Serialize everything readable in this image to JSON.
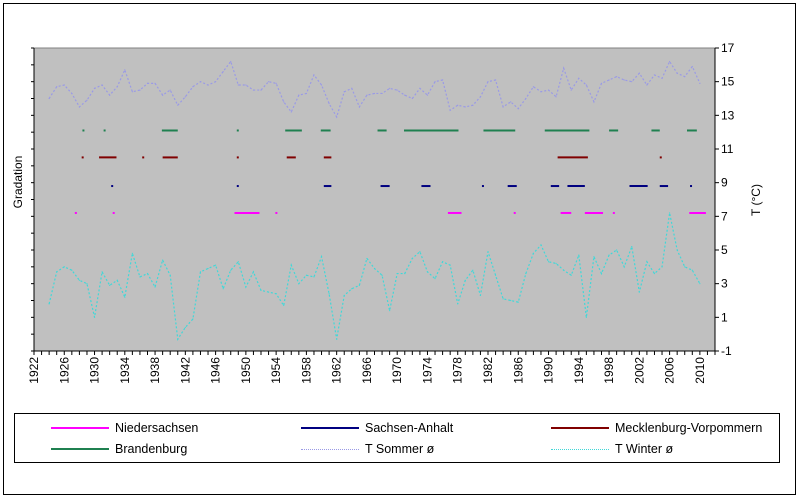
{
  "chart_data": {
    "type": "line",
    "xlabel": "",
    "ylabel_left": "Gradation",
    "ylabel_right": "T (°C)",
    "xlim": [
      1922,
      2012
    ],
    "ylim": [
      -1,
      17
    ],
    "x_ticks": [
      "1922",
      "1926",
      "1930",
      "1934",
      "1938",
      "1942",
      "1946",
      "1950",
      "1954",
      "1958",
      "1962",
      "1966",
      "1970",
      "1974",
      "1978",
      "1982",
      "1986",
      "1990",
      "1994",
      "1998",
      "2002",
      "2006",
      "2010"
    ],
    "y_ticks": [
      "17",
      "15",
      "13",
      "11",
      "9",
      "7",
      "5",
      "3",
      "1",
      "-1"
    ],
    "background": "#c0c0c0",
    "grid": false,
    "legend_position": "bottom",
    "series": [
      {
        "name": "Niedersachsen",
        "color": "#ff00ff",
        "style": "segments",
        "level": 7.2,
        "segments": [
          [
            1927.4,
            1927.6
          ],
          [
            1932.4,
            1932.6
          ],
          [
            1948.5,
            1951.8
          ],
          [
            1953.9,
            1954.1
          ],
          [
            1976.7,
            1978.5
          ],
          [
            1985.4,
            1985.6
          ],
          [
            1991.6,
            1993.0
          ],
          [
            1994.8,
            1997.2
          ],
          [
            1998.5,
            1998.7
          ],
          [
            2008.6,
            2010.8
          ]
        ]
      },
      {
        "name": "Sachsen-Anhalt",
        "color": "#000080",
        "style": "segments",
        "level": 8.8,
        "segments": [
          [
            1932.2,
            1932.4
          ],
          [
            1948.8,
            1949.0
          ],
          [
            1960.3,
            1961.3
          ],
          [
            1967.8,
            1969.0
          ],
          [
            1973.2,
            1974.4
          ],
          [
            1981.2,
            1981.4
          ],
          [
            1984.6,
            1985.8
          ],
          [
            1990.3,
            1991.4
          ],
          [
            1992.5,
            1994.8
          ],
          [
            2000.7,
            2003.1
          ],
          [
            2004.7,
            2005.8
          ],
          [
            2008.7,
            2008.9
          ]
        ]
      },
      {
        "name": "Mecklenburg-Vorpommern",
        "color": "#800000",
        "style": "segments",
        "level": 10.5,
        "segments": [
          [
            1928.3,
            1928.5
          ],
          [
            1930.6,
            1932.9
          ],
          [
            1936.3,
            1936.5
          ],
          [
            1939.0,
            1941.0
          ],
          [
            1948.8,
            1949.0
          ],
          [
            1955.4,
            1956.6
          ],
          [
            1960.3,
            1961.3
          ],
          [
            1991.2,
            1995.2
          ],
          [
            2004.7,
            2004.9
          ]
        ]
      },
      {
        "name": "Brandenburg",
        "color": "#1f8050",
        "style": "segments",
        "level": 12.1,
        "segments": [
          [
            1928.4,
            1928.6
          ],
          [
            1931.2,
            1931.4
          ],
          [
            1938.9,
            1941.0
          ],
          [
            1948.8,
            1949.0
          ],
          [
            1955.2,
            1957.4
          ],
          [
            1959.9,
            1961.2
          ],
          [
            1967.4,
            1968.6
          ],
          [
            1970.9,
            1978.1
          ],
          [
            1981.4,
            1985.6
          ],
          [
            1989.5,
            1995.4
          ],
          [
            1998.0,
            1999.2
          ],
          [
            2003.6,
            2004.7
          ],
          [
            2008.3,
            2009.6
          ]
        ]
      },
      {
        "name": "T Sommer ø",
        "color": "#9a9ae6",
        "style": "dotted",
        "x": [
          1924,
          1925,
          1926,
          1927,
          1928,
          1929,
          1930,
          1931,
          1932,
          1933,
          1934,
          1935,
          1936,
          1937,
          1938,
          1939,
          1940,
          1941,
          1942,
          1943,
          1944,
          1945,
          1946,
          1947,
          1948,
          1949,
          1950,
          1951,
          1952,
          1953,
          1954,
          1955,
          1956,
          1957,
          1958,
          1959,
          1960,
          1961,
          1962,
          1963,
          1964,
          1965,
          1966,
          1967,
          1968,
          1969,
          1970,
          1971,
          1972,
          1973,
          1974,
          1975,
          1976,
          1977,
          1978,
          1979,
          1980,
          1981,
          1982,
          1983,
          1984,
          1985,
          1986,
          1987,
          1988,
          1989,
          1990,
          1991,
          1992,
          1993,
          1994,
          1995,
          1996,
          1997,
          1998,
          1999,
          2000,
          2001,
          2002,
          2003,
          2004,
          2005,
          2006,
          2007,
          2008,
          2009,
          2010
        ],
        "y": [
          14.0,
          14.7,
          14.8,
          14.3,
          13.5,
          13.9,
          14.6,
          14.8,
          14.2,
          14.7,
          15.7,
          14.4,
          14.5,
          14.9,
          14.9,
          14.2,
          14.5,
          13.6,
          14.1,
          14.7,
          15.0,
          14.8,
          15.0,
          15.6,
          16.2,
          14.8,
          14.8,
          14.5,
          14.5,
          15.0,
          14.9,
          13.8,
          13.2,
          14.2,
          14.3,
          15.4,
          14.8,
          13.7,
          12.9,
          14.4,
          14.6,
          13.5,
          14.2,
          14.3,
          14.3,
          14.6,
          14.5,
          14.2,
          14.0,
          14.6,
          14.2,
          15.0,
          15.1,
          13.3,
          13.6,
          13.5,
          13.6,
          14.1,
          15.0,
          15.1,
          13.5,
          13.8,
          13.4,
          14.0,
          14.7,
          14.4,
          14.5,
          14.1,
          15.8,
          14.5,
          15.2,
          14.8,
          13.8,
          14.9,
          15.1,
          15.3,
          15.1,
          15.0,
          15.5,
          14.8,
          15.4,
          15.2,
          16.2,
          15.5,
          15.3,
          15.9,
          14.9
        ]
      },
      {
        "name": "T Winter ø",
        "color": "#40d8d8",
        "style": "dotted",
        "x": [
          1924,
          1925,
          1926,
          1927,
          1928,
          1929,
          1930,
          1931,
          1932,
          1933,
          1934,
          1935,
          1936,
          1937,
          1938,
          1939,
          1940,
          1941,
          1942,
          1943,
          1944,
          1945,
          1946,
          1947,
          1948,
          1949,
          1950,
          1951,
          1952,
          1953,
          1954,
          1955,
          1956,
          1957,
          1958,
          1959,
          1960,
          1961,
          1962,
          1963,
          1964,
          1965,
          1966,
          1967,
          1968,
          1969,
          1970,
          1971,
          1972,
          1973,
          1974,
          1975,
          1976,
          1977,
          1978,
          1979,
          1980,
          1981,
          1982,
          1983,
          1984,
          1985,
          1986,
          1987,
          1988,
          1989,
          1990,
          1991,
          1992,
          1993,
          1994,
          1995,
          1996,
          1997,
          1998,
          1999,
          2000,
          2001,
          2002,
          2003,
          2004,
          2005,
          2006,
          2007,
          2008,
          2009,
          2010
        ],
        "y": [
          1.8,
          3.7,
          4.0,
          3.8,
          3.2,
          3.0,
          1.0,
          3.7,
          2.9,
          3.2,
          2.2,
          4.8,
          3.4,
          3.6,
          2.8,
          4.4,
          3.5,
          -0.3,
          0.4,
          0.9,
          3.7,
          3.9,
          4.1,
          2.7,
          3.8,
          4.3,
          2.8,
          3.7,
          2.6,
          2.5,
          2.4,
          1.7,
          4.1,
          3.0,
          3.5,
          3.4,
          4.6,
          2.4,
          -0.3,
          2.3,
          2.7,
          2.9,
          4.5,
          3.9,
          3.5,
          1.4,
          3.6,
          3.6,
          4.5,
          4.9,
          3.7,
          3.3,
          4.3,
          4.1,
          1.8,
          3.2,
          3.8,
          2.3,
          4.9,
          3.5,
          2.1,
          2.0,
          1.9,
          3.6,
          4.8,
          5.3,
          4.3,
          4.2,
          3.8,
          3.5,
          4.7,
          1.0,
          4.6,
          3.6,
          4.7,
          5.0,
          4.0,
          5.2,
          2.5,
          4.3,
          3.6,
          4.0,
          7.2,
          5.0,
          4.0,
          3.8,
          3.0
        ]
      }
    ]
  }
}
